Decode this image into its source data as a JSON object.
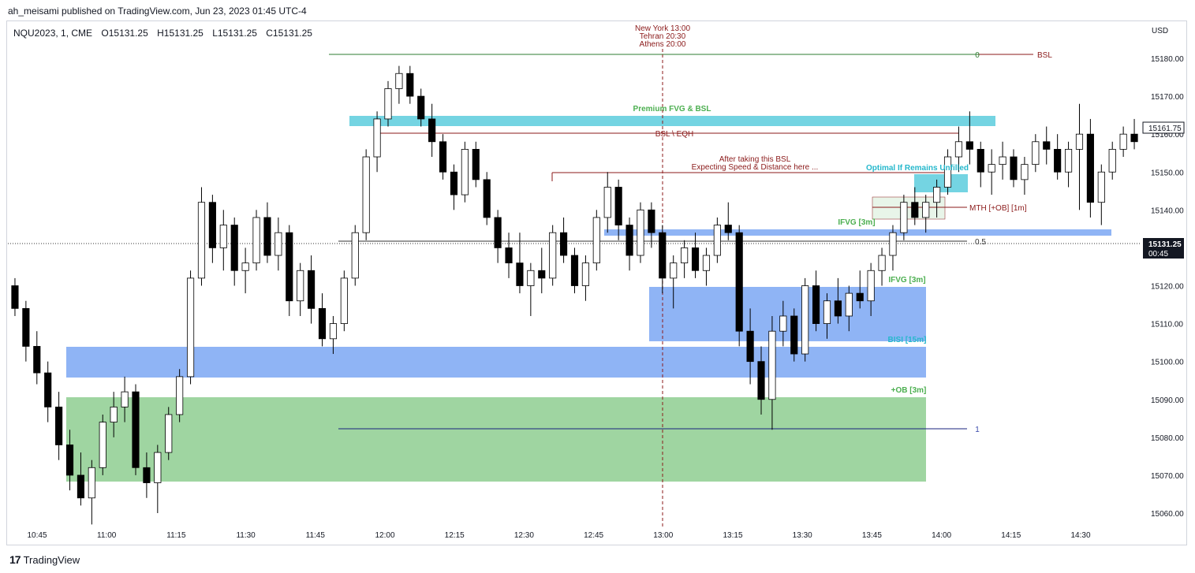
{
  "header": {
    "published": "ah_meisami published on TradingView.com, Jun 23, 2023 01:45 UTC-4",
    "symbol": "NQU2023, 1, CME",
    "open": "O15131.25",
    "high": "H15131.25",
    "low": "L15131.25",
    "close": "C15131.25",
    "currency": "USD"
  },
  "footer": {
    "brand": "TradingView"
  },
  "price_tag": {
    "value": "15131.25",
    "countdown": "00:45"
  },
  "high_tag": {
    "value": "15161.75"
  },
  "session": {
    "ny": "New York 13:00",
    "tehran": "Tehran 20:30",
    "athens": "Athens 20:00"
  },
  "colors": {
    "up": "#ffffff",
    "down": "#000000",
    "blue_zone": "#8fb4f5",
    "green_zone": "#9fd5a1",
    "cyan_zone": "#74d4e2",
    "red_line": "#8b1a1a",
    "green_text": "#4caf50",
    "cyan_text": "#26b8cc"
  },
  "chart_data": {
    "type": "candlestick",
    "x_ticks": [
      "10:45",
      "11:00",
      "11:15",
      "11:30",
      "11:45",
      "12:00",
      "12:15",
      "12:30",
      "12:45",
      "13:00",
      "13:15",
      "13:30",
      "13:45",
      "14:00",
      "14:15",
      "14:30"
    ],
    "y_ticks": [
      "15180.00",
      "15170.00",
      "15160.00",
      "15150.00",
      "15140.00",
      "15130.00",
      "15120.00",
      "15110.00",
      "15100.00",
      "15090.00",
      "15080.00",
      "15070.00",
      "15060.00"
    ],
    "ylim": [
      15056,
      15188
    ],
    "key_levels": {
      "fib_0": 15181,
      "fib_05": 15131.5,
      "fib_1": 15082,
      "bsl_eqh": 15160,
      "expect_level": 15150,
      "mth_ob": 15140.5
    },
    "ohlc": [
      [
        15120,
        15122,
        15112,
        15114
      ],
      [
        15114,
        15116,
        15100,
        15104
      ],
      [
        15104,
        15108,
        15094,
        15097
      ],
      [
        15097,
        15100,
        15084,
        15088
      ],
      [
        15088,
        15092,
        15074,
        15078
      ],
      [
        15078,
        15082,
        15066,
        15070
      ],
      [
        15070,
        15076,
        15062,
        15064
      ],
      [
        15064,
        15074,
        15057,
        15072
      ],
      [
        15072,
        15086,
        15070,
        15084
      ],
      [
        15084,
        15092,
        15080,
        15088
      ],
      [
        15088,
        15096,
        15084,
        15092
      ],
      [
        15092,
        15094,
        15070,
        15072
      ],
      [
        15072,
        15076,
        15064,
        15068
      ],
      [
        15068,
        15078,
        15060,
        15076
      ],
      [
        15076,
        15088,
        15074,
        15086
      ],
      [
        15086,
        15098,
        15084,
        15096
      ],
      [
        15096,
        15124,
        15094,
        15122
      ],
      [
        15122,
        15146,
        15120,
        15142
      ],
      [
        15142,
        15144,
        15126,
        15130
      ],
      [
        15130,
        15140,
        15124,
        15136
      ],
      [
        15136,
        15138,
        15120,
        15124
      ],
      [
        15124,
        15130,
        15118,
        15126
      ],
      [
        15126,
        15140,
        15124,
        15138
      ],
      [
        15138,
        15142,
        15126,
        15128
      ],
      [
        15128,
        15138,
        15124,
        15134
      ],
      [
        15134,
        15136,
        15112,
        15116
      ],
      [
        15116,
        15126,
        15112,
        15124
      ],
      [
        15124,
        15128,
        15110,
        15114
      ],
      [
        15114,
        15118,
        15104,
        15106
      ],
      [
        15106,
        15112,
        15102,
        15110
      ],
      [
        15110,
        15124,
        15108,
        15122
      ],
      [
        15122,
        15136,
        15120,
        15134
      ],
      [
        15134,
        15156,
        15132,
        15154
      ],
      [
        15154,
        15166,
        15150,
        15164
      ],
      [
        15164,
        15174,
        15162,
        15172
      ],
      [
        15172,
        15178,
        15168,
        15176
      ],
      [
        15176,
        15178,
        15168,
        15170
      ],
      [
        15170,
        15172,
        15162,
        15164
      ],
      [
        15164,
        15168,
        15154,
        15158
      ],
      [
        15158,
        15160,
        15148,
        15150
      ],
      [
        15150,
        15152,
        15140,
        15144
      ],
      [
        15144,
        15158,
        15142,
        15156
      ],
      [
        15156,
        15158,
        15146,
        15148
      ],
      [
        15148,
        15150,
        15136,
        15138
      ],
      [
        15138,
        15140,
        15126,
        15130
      ],
      [
        15130,
        15134,
        15122,
        15126
      ],
      [
        15126,
        15134,
        15118,
        15120
      ],
      [
        15120,
        15126,
        15112,
        15124
      ],
      [
        15124,
        15130,
        15118,
        15122
      ],
      [
        15122,
        15136,
        15120,
        15134
      ],
      [
        15134,
        15138,
        15126,
        15128
      ],
      [
        15128,
        15130,
        15118,
        15120
      ],
      [
        15120,
        15128,
        15116,
        15126
      ],
      [
        15126,
        15140,
        15124,
        15138
      ],
      [
        15138,
        15150,
        15134,
        15146
      ],
      [
        15146,
        15148,
        15132,
        15136
      ],
      [
        15136,
        15138,
        15124,
        15128
      ],
      [
        15128,
        15142,
        15126,
        15140
      ],
      [
        15140,
        15142,
        15130,
        15134
      ],
      [
        15134,
        15136,
        15118,
        15122
      ],
      [
        15122,
        15128,
        15114,
        15126
      ],
      [
        15126,
        15132,
        15122,
        15130
      ],
      [
        15130,
        15134,
        15122,
        15124
      ],
      [
        15124,
        15130,
        15120,
        15128
      ],
      [
        15128,
        15138,
        15126,
        15136
      ],
      [
        15136,
        15142,
        15132,
        15134
      ],
      [
        15134,
        15136,
        15104,
        15108
      ],
      [
        15108,
        15114,
        15094,
        15100
      ],
      [
        15100,
        15104,
        15086,
        15090
      ],
      [
        15090,
        15112,
        15082,
        15108
      ],
      [
        15108,
        15116,
        15104,
        15112
      ],
      [
        15112,
        15114,
        15100,
        15102
      ],
      [
        15102,
        15122,
        15100,
        15120
      ],
      [
        15120,
        15124,
        15108,
        15110
      ],
      [
        15110,
        15118,
        15106,
        15116
      ],
      [
        15116,
        15122,
        15110,
        15112
      ],
      [
        15112,
        15120,
        15108,
        15118
      ],
      [
        15118,
        15124,
        15114,
        15116
      ],
      [
        15116,
        15126,
        15112,
        15124
      ],
      [
        15124,
        15130,
        15120,
        15128
      ],
      [
        15128,
        15136,
        15124,
        15134
      ],
      [
        15134,
        15144,
        15132,
        15142
      ],
      [
        15142,
        15146,
        15136,
        15138
      ],
      [
        15138,
        15144,
        15134,
        15142
      ],
      [
        15142,
        15148,
        15138,
        15146
      ],
      [
        15146,
        15156,
        15144,
        15154
      ],
      [
        15154,
        15162,
        15150,
        15158
      ],
      [
        15158,
        15166,
        15152,
        15156
      ],
      [
        15156,
        15158,
        15146,
        15150
      ],
      [
        15150,
        15156,
        15144,
        15152
      ],
      [
        15152,
        15158,
        15148,
        15154
      ],
      [
        15154,
        15156,
        15146,
        15148
      ],
      [
        15148,
        15154,
        15144,
        15152
      ],
      [
        15152,
        15160,
        15150,
        15158
      ],
      [
        15158,
        15162,
        15152,
        15156
      ],
      [
        15156,
        15160,
        15148,
        15150
      ],
      [
        15150,
        15158,
        15146,
        15156
      ],
      [
        15156,
        15168,
        15140,
        15160
      ],
      [
        15160,
        15164,
        15138,
        15142
      ],
      [
        15142,
        15152,
        15136,
        15150
      ],
      [
        15150,
        15158,
        15148,
        15156
      ],
      [
        15156,
        15162,
        15154,
        15160
      ],
      [
        15160,
        15164,
        15156,
        15158
      ]
    ]
  }
}
